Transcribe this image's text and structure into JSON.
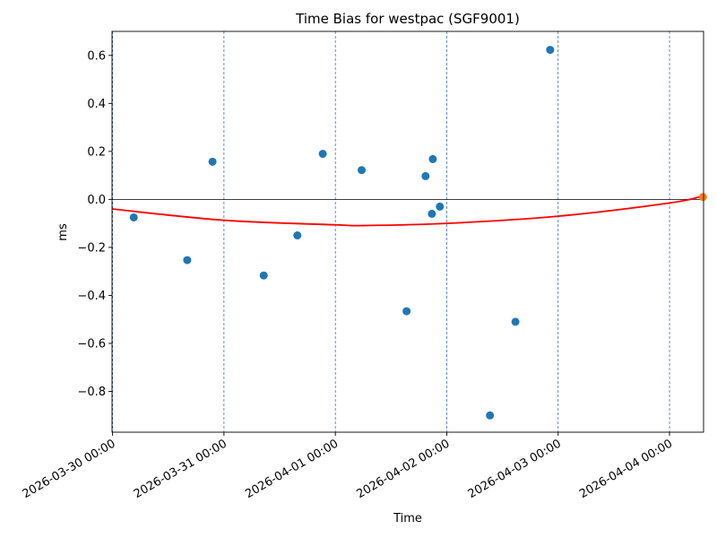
{
  "chart_data": {
    "type": "scatter",
    "title": "Time Bias for westpac (SGF9001)",
    "xlabel": "Time",
    "ylabel": "ms",
    "x_axis": {
      "type": "datetime",
      "range": [
        "2026-03-29T23:53",
        "2026-04-04T07:20"
      ],
      "ticks": [
        "2026-03-30 00:00",
        "2026-03-31 00:00",
        "2026-04-01 00:00",
        "2026-04-02 00:00",
        "2026-04-03 00:00",
        "2026-04-04 00:00"
      ]
    },
    "y_axis": {
      "range": [
        -0.97,
        0.7
      ],
      "ticks": [
        "-0.8",
        "-0.6",
        "-0.4",
        "-0.2",
        "0.0",
        "0.2",
        "0.4",
        "0.6"
      ]
    },
    "vertical_gridlines": "dashed at each day",
    "zero_line": true,
    "series": [
      {
        "kind": "points",
        "color": "#1f77b4",
        "points": [
          {
            "x": "2026-03-30T04:34",
            "y": -0.075
          },
          {
            "x": "2026-03-30T16:05",
            "y": -0.253
          },
          {
            "x": "2026-03-30T21:32",
            "y": 0.157
          },
          {
            "x": "2026-03-31T08:34",
            "y": -0.317
          },
          {
            "x": "2026-03-31T15:49",
            "y": -0.15
          },
          {
            "x": "2026-03-31T21:17",
            "y": 0.19
          },
          {
            "x": "2026-04-01T05:40",
            "y": 0.122
          },
          {
            "x": "2026-04-01T15:21",
            "y": -0.466
          },
          {
            "x": "2026-04-01T19:26",
            "y": 0.097
          },
          {
            "x": "2026-04-01T20:48",
            "y": -0.06
          },
          {
            "x": "2026-04-01T21:00",
            "y": 0.168
          },
          {
            "x": "2026-04-01T22:31",
            "y": -0.03
          },
          {
            "x": "2026-04-02T09:19",
            "y": -0.9
          },
          {
            "x": "2026-04-02T14:48",
            "y": -0.51
          },
          {
            "x": "2026-04-02T22:17",
            "y": 0.623
          }
        ]
      },
      {
        "kind": "points",
        "color": "#ff7f0e",
        "points": [
          {
            "x": "2026-04-04T07:12",
            "y": 0.01
          }
        ]
      },
      {
        "kind": "fit-curve",
        "color": "#ff0000",
        "points": [
          {
            "x": "2026-03-29T23:53",
            "y": -0.04
          },
          {
            "x": "2026-03-31T00:00",
            "y": -0.087
          },
          {
            "x": "2026-04-01T00:00",
            "y": -0.106
          },
          {
            "x": "2026-04-01T06:00",
            "y": -0.109
          },
          {
            "x": "2026-04-02T00:00",
            "y": -0.1
          },
          {
            "x": "2026-04-03T00:00",
            "y": -0.07
          },
          {
            "x": "2026-04-04T00:00",
            "y": -0.015
          },
          {
            "x": "2026-04-04T07:20",
            "y": 0.015
          }
        ]
      }
    ]
  }
}
